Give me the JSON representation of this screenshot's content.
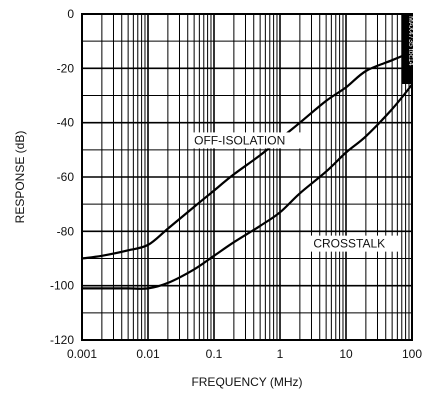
{
  "chart_data": {
    "type": "line",
    "xlabel": "FREQUENCY (MHz)",
    "ylabel": "RESPONSE (dB)",
    "xscale": "log",
    "xlim": [
      0.001,
      100
    ],
    "ylim": [
      -120,
      0
    ],
    "x_tick_labels": [
      "0.001",
      "0.01",
      "0.1",
      "1",
      "10",
      "100"
    ],
    "y_tick_labels": [
      "0",
      "-20",
      "-40",
      "-60",
      "-80",
      "-100",
      "-120"
    ],
    "grid": true,
    "figure_id": "MAX4735 toc14",
    "series": [
      {
        "name": "OFF-ISOLATION",
        "x": [
          0.001,
          0.002,
          0.005,
          0.01,
          0.02,
          0.05,
          0.1,
          0.2,
          0.5,
          1,
          2,
          5,
          10,
          20,
          50,
          100
        ],
        "y": [
          -90,
          -89,
          -87,
          -85,
          -79,
          -71,
          -65,
          -59,
          -52,
          -46,
          -40,
          -32,
          -27,
          -21,
          -17,
          -14
        ]
      },
      {
        "name": "CROSSTALK",
        "x": [
          0.001,
          0.002,
          0.005,
          0.01,
          0.02,
          0.05,
          0.1,
          0.2,
          0.5,
          1,
          2,
          5,
          10,
          20,
          50,
          100
        ],
        "y": [
          -101,
          -101,
          -101,
          -101,
          -99,
          -94,
          -89,
          -84,
          -78,
          -73,
          -66,
          -58,
          -51,
          -45,
          -35,
          -26
        ]
      }
    ]
  }
}
